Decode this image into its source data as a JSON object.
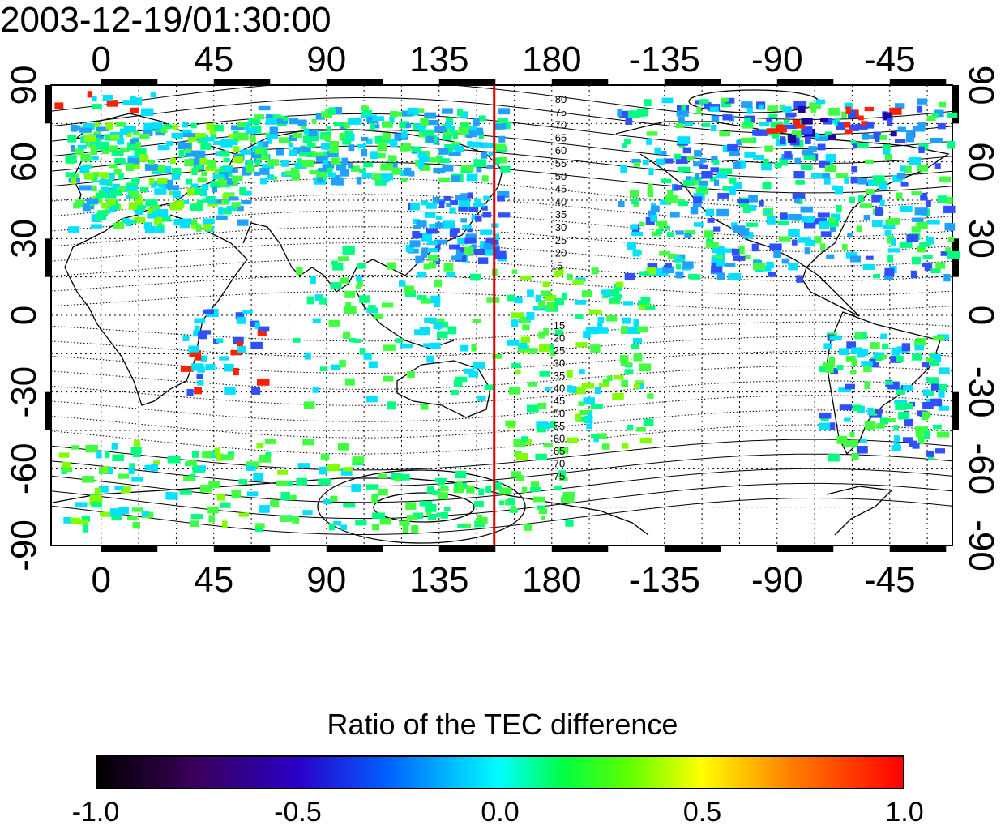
{
  "timestamp": "2003-12-19/01:30:00",
  "map": {
    "lon_ticks": [
      "0",
      "45",
      "90",
      "135",
      "180",
      "-135",
      "-90",
      "-45"
    ],
    "lon_values": [
      0,
      45,
      90,
      135,
      180,
      225,
      270,
      315
    ],
    "lon_range": [
      -20,
      340
    ],
    "lat_ticks": [
      "90",
      "60",
      "30",
      "0",
      "-30",
      "-60",
      "-90"
    ],
    "lat_values": [
      90,
      60,
      30,
      0,
      -30,
      -60,
      -90
    ],
    "lat_range": [
      -90,
      90
    ],
    "highlight_meridian_lon": 157,
    "highlight_color": "#e00000",
    "north_contour_labels": [
      "80",
      "75",
      "70",
      "65",
      "60",
      "55",
      "50",
      "45",
      "40",
      "35",
      "30",
      "25",
      "20",
      "15"
    ],
    "south_contour_labels": [
      "15",
      "20",
      "25",
      "30",
      "35",
      "40",
      "45",
      "50",
      "55",
      "60",
      "65",
      "70",
      "75"
    ]
  },
  "colorbar": {
    "title": "Ratio of the TEC difference",
    "ticks": [
      "-1.0",
      "-0.5",
      "0.0",
      "0.5",
      "1.0"
    ],
    "tick_values": [
      -1.0,
      -0.5,
      0.0,
      0.5,
      1.0
    ],
    "range": [
      -1.0,
      1.0
    ],
    "colors": [
      "#000000",
      "#2a00c8",
      "#00ffff",
      "#ffff00",
      "#ff0000"
    ]
  }
}
